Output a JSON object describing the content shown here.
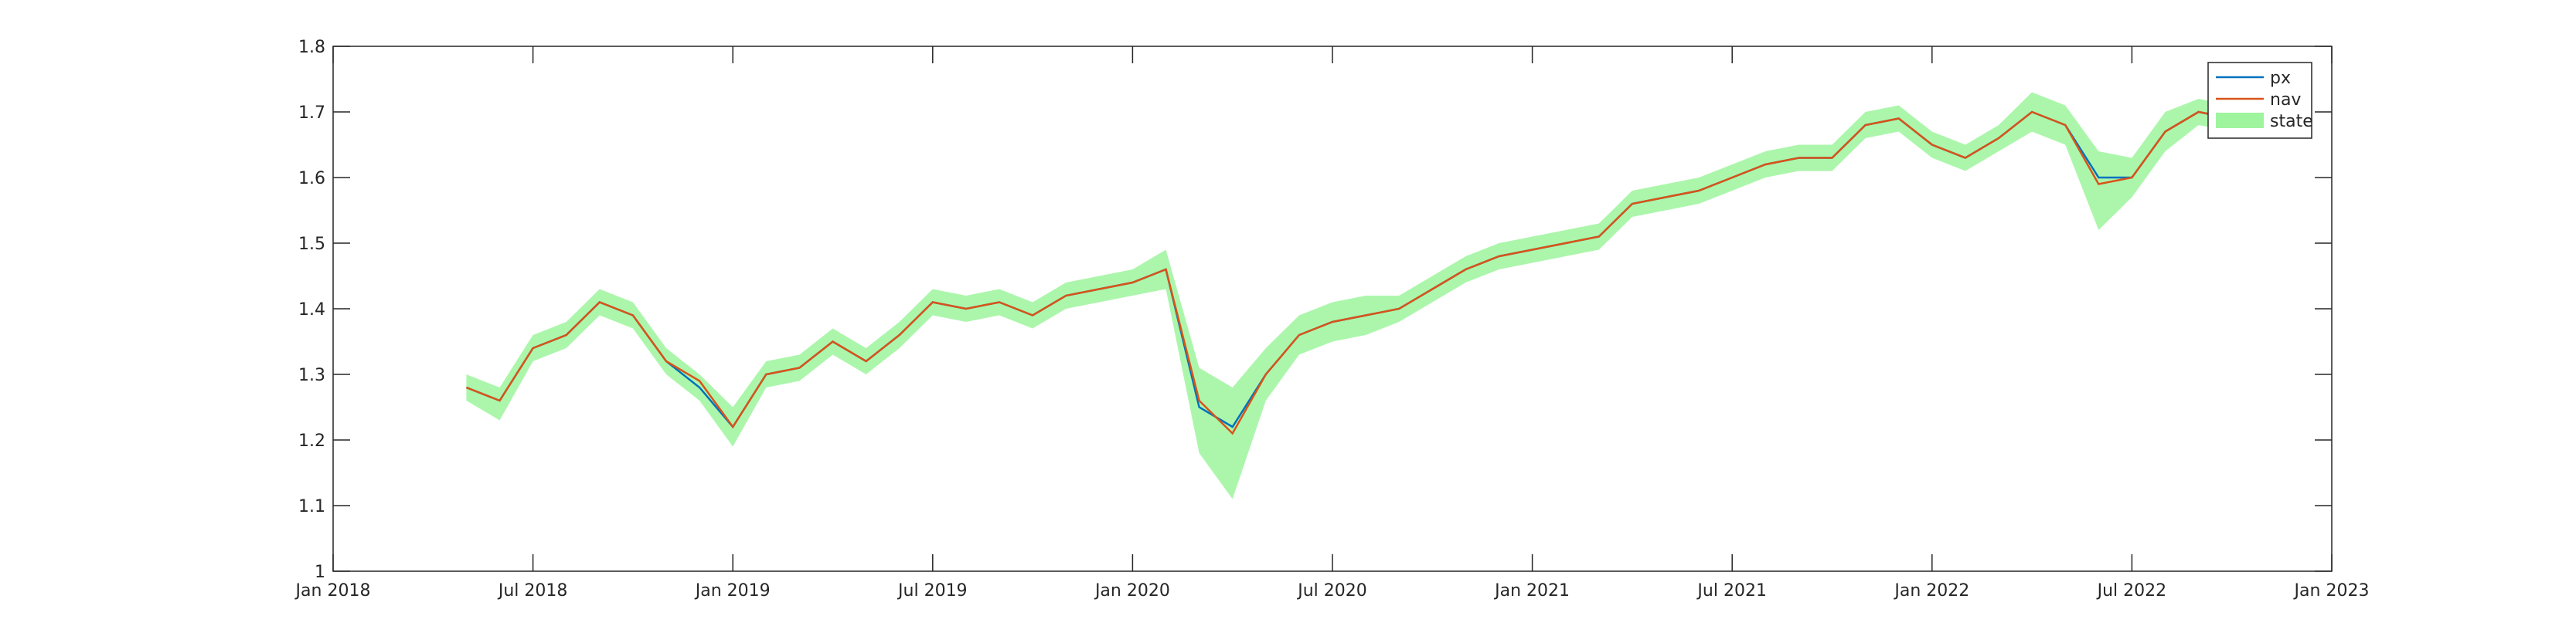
{
  "chart_data": {
    "type": "line",
    "x": [
      "2018-05",
      "2018-06",
      "2018-07",
      "2018-08",
      "2018-09",
      "2018-10",
      "2018-11",
      "2018-12",
      "2019-01",
      "2019-02",
      "2019-03",
      "2019-04",
      "2019-05",
      "2019-06",
      "2019-07",
      "2019-08",
      "2019-09",
      "2019-10",
      "2019-11",
      "2019-12",
      "2020-01",
      "2020-02",
      "2020-03",
      "2020-04",
      "2020-05",
      "2020-06",
      "2020-07",
      "2020-08",
      "2020-09",
      "2020-10",
      "2020-11",
      "2020-12",
      "2021-01",
      "2021-02",
      "2021-03",
      "2021-04",
      "2021-05",
      "2021-06",
      "2021-07",
      "2021-08",
      "2021-09",
      "2021-10",
      "2021-11",
      "2021-12",
      "2022-01",
      "2022-02",
      "2022-03",
      "2022-04",
      "2022-05",
      "2022-06",
      "2022-07",
      "2022-08",
      "2022-09",
      "2022-10"
    ],
    "series": [
      {
        "name": "px",
        "color": "#0072bd",
        "values": [
          1.28,
          1.26,
          1.34,
          1.36,
          1.41,
          1.39,
          1.32,
          1.28,
          1.22,
          1.3,
          1.31,
          1.35,
          1.32,
          1.36,
          1.41,
          1.4,
          1.41,
          1.39,
          1.42,
          1.43,
          1.44,
          1.46,
          1.25,
          1.22,
          1.3,
          1.36,
          1.38,
          1.39,
          1.4,
          1.43,
          1.46,
          1.48,
          1.49,
          1.5,
          1.51,
          1.56,
          1.57,
          1.58,
          1.6,
          1.62,
          1.63,
          1.63,
          1.68,
          1.69,
          1.65,
          1.63,
          1.66,
          1.7,
          1.68,
          1.6,
          1.6,
          1.67,
          1.7,
          1.69
        ]
      },
      {
        "name": "nav",
        "color": "#d95319",
        "values": [
          1.28,
          1.26,
          1.34,
          1.36,
          1.41,
          1.39,
          1.32,
          1.29,
          1.22,
          1.3,
          1.31,
          1.35,
          1.32,
          1.36,
          1.41,
          1.4,
          1.41,
          1.39,
          1.42,
          1.43,
          1.44,
          1.46,
          1.26,
          1.21,
          1.3,
          1.36,
          1.38,
          1.39,
          1.4,
          1.43,
          1.46,
          1.48,
          1.49,
          1.5,
          1.51,
          1.56,
          1.57,
          1.58,
          1.6,
          1.62,
          1.63,
          1.63,
          1.68,
          1.69,
          1.65,
          1.63,
          1.66,
          1.7,
          1.68,
          1.59,
          1.6,
          1.67,
          1.7,
          1.69
        ]
      },
      {
        "name": "state",
        "color": "#9ef59e",
        "upper": [
          1.3,
          1.28,
          1.36,
          1.38,
          1.43,
          1.41,
          1.34,
          1.3,
          1.25,
          1.32,
          1.33,
          1.37,
          1.34,
          1.38,
          1.43,
          1.42,
          1.43,
          1.41,
          1.44,
          1.45,
          1.46,
          1.49,
          1.31,
          1.28,
          1.34,
          1.39,
          1.41,
          1.42,
          1.42,
          1.45,
          1.48,
          1.5,
          1.51,
          1.52,
          1.53,
          1.58,
          1.59,
          1.6,
          1.62,
          1.64,
          1.65,
          1.65,
          1.7,
          1.71,
          1.67,
          1.65,
          1.68,
          1.73,
          1.71,
          1.64,
          1.63,
          1.7,
          1.72,
          1.71
        ],
        "lower": [
          1.26,
          1.23,
          1.32,
          1.34,
          1.39,
          1.37,
          1.3,
          1.26,
          1.19,
          1.28,
          1.29,
          1.33,
          1.3,
          1.34,
          1.39,
          1.38,
          1.39,
          1.37,
          1.4,
          1.41,
          1.42,
          1.43,
          1.18,
          1.11,
          1.26,
          1.33,
          1.35,
          1.36,
          1.38,
          1.41,
          1.44,
          1.46,
          1.47,
          1.48,
          1.49,
          1.54,
          1.55,
          1.56,
          1.58,
          1.6,
          1.61,
          1.61,
          1.66,
          1.67,
          1.63,
          1.61,
          1.64,
          1.67,
          1.65,
          1.52,
          1.57,
          1.64,
          1.68,
          1.67
        ]
      }
    ],
    "xlim": [
      "2018-01",
      "2023-01"
    ],
    "xticks": [
      {
        "value": "2018-01",
        "label": "Jan 2018"
      },
      {
        "value": "2018-07",
        "label": "Jul 2018"
      },
      {
        "value": "2019-01",
        "label": "Jan 2019"
      },
      {
        "value": "2019-07",
        "label": "Jul 2019"
      },
      {
        "value": "2020-01",
        "label": "Jan 2020"
      },
      {
        "value": "2020-07",
        "label": "Jul 2020"
      },
      {
        "value": "2021-01",
        "label": "Jan 2021"
      },
      {
        "value": "2021-07",
        "label": "Jul 2021"
      },
      {
        "value": "2022-01",
        "label": "Jan 2022"
      },
      {
        "value": "2022-07",
        "label": "Jul 2022"
      },
      {
        "value": "2023-01",
        "label": "Jan 2023"
      }
    ],
    "ylim": [
      1,
      1.8
    ],
    "yticks": [
      1,
      1.1,
      1.2,
      1.3,
      1.4,
      1.5,
      1.6,
      1.7,
      1.8
    ],
    "grid": false,
    "legend": "upper right"
  }
}
